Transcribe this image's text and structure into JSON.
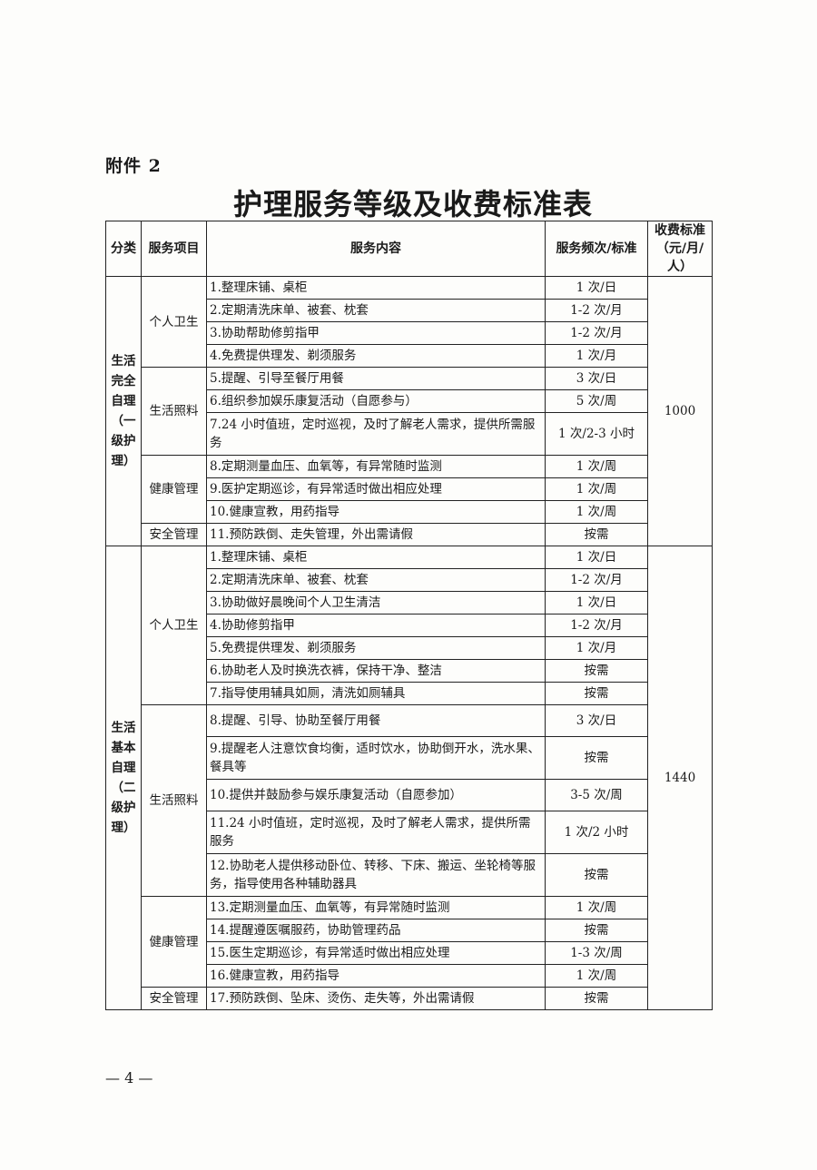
{
  "attachment": "附件 2",
  "title": "护理服务等级及收费标准表",
  "headers": {
    "category": "分类",
    "item": "服务项目",
    "content": "服务内容",
    "frequency": "服务频次/标准",
    "fee": "收费标准（元/月/人）"
  },
  "sections": [
    {
      "category": "生活完全自理（一级护理）",
      "fee": "1000",
      "groups": [
        {
          "name": "个人卫生",
          "rows": [
            {
              "content": "1.整理床铺、桌柜",
              "frequency": "1 次/日"
            },
            {
              "content": "2.定期清洗床单、被套、枕套",
              "frequency": "1-2 次/月"
            },
            {
              "content": "3.协助帮助修剪指甲",
              "frequency": "1-2 次/月"
            },
            {
              "content": "4.免费提供理发、剃须服务",
              "frequency": "1 次/月"
            }
          ]
        },
        {
          "name": "生活照料",
          "rows": [
            {
              "content": "5.提醒、引导至餐厅用餐",
              "frequency": "3 次/日"
            },
            {
              "content": "6.组织参加娱乐康复活动（自愿参与）",
              "frequency": "5 次/周"
            },
            {
              "content": "7.24 小时值班，定时巡视，及时了解老人需求，提供所需服务",
              "frequency": "1 次/2-3 小时",
              "tall": true
            }
          ]
        },
        {
          "name": "健康管理",
          "rows": [
            {
              "content": "8.定期测量血压、血氧等，有异常随时监测",
              "frequency": "1 次/周"
            },
            {
              "content": "9.医护定期巡诊，有异常适时做出相应处理",
              "frequency": "1 次/周"
            },
            {
              "content": "10.健康宣教，用药指导",
              "frequency": "1 次/周"
            }
          ]
        },
        {
          "name": "安全管理",
          "rows": [
            {
              "content": "11.预防跌倒、走失管理，外出需请假",
              "frequency": "按需"
            }
          ]
        }
      ]
    },
    {
      "category": "生活基本自理（二级护理）",
      "fee": "1440",
      "groups": [
        {
          "name": "个人卫生",
          "rows": [
            {
              "content": "1.整理床铺、桌柜",
              "frequency": "1 次/日"
            },
            {
              "content": "2.定期清洗床单、被套、枕套",
              "frequency": "1-2 次/月"
            },
            {
              "content": "3.协助做好晨晚间个人卫生清洁",
              "frequency": "1 次/日"
            },
            {
              "content": "4.协助修剪指甲",
              "frequency": "1-2 次/月"
            },
            {
              "content": "5.免费提供理发、剃须服务",
              "frequency": "1 次/月"
            },
            {
              "content": "6.协助老人及时换洗衣裤，保持干净、整洁",
              "frequency": "按需"
            },
            {
              "content": "7.指导使用辅具如厕，清洗如厕辅具",
              "frequency": "按需"
            }
          ]
        },
        {
          "name": "生活照料",
          "rows": [
            {
              "content": "8.提醒、引导、协助至餐厅用餐",
              "frequency": "3 次/日",
              "mid": true
            },
            {
              "content": "9.提醒老人注意饮食均衡，适时饮水，协助倒开水，洗水果、餐具等",
              "frequency": "按需",
              "tall": true
            },
            {
              "content": "10.提供并鼓励参与娱乐康复活动（自愿参加）",
              "frequency": "3-5 次/周",
              "mid": true
            },
            {
              "content": "11.24 小时值班，定时巡视，及时了解老人需求，提供所需服务",
              "frequency": "1 次/2 小时",
              "tall": true
            },
            {
              "content": "12.协助老人提供移动卧位、转移、下床、搬运、坐轮椅等服务，指导使用各种辅助器具",
              "frequency": "按需",
              "tall": true
            }
          ]
        },
        {
          "name": "健康管理",
          "rows": [
            {
              "content": "13.定期测量血压、血氧等，有异常随时监测",
              "frequency": "1 次/周"
            },
            {
              "content": "14.提醒遵医嘱服药，协助管理药品",
              "frequency": "按需"
            },
            {
              "content": "15.医生定期巡诊，有异常适时做出相应处理",
              "frequency": "1-3 次/周"
            },
            {
              "content": "16.健康宣教，用药指导",
              "frequency": "1 次/周"
            }
          ]
        },
        {
          "name": "安全管理",
          "rows": [
            {
              "content": "17.预防跌倒、坠床、烫伤、走失等，外出需请假",
              "frequency": "按需"
            }
          ]
        }
      ]
    }
  ],
  "footer": "— 4 —"
}
